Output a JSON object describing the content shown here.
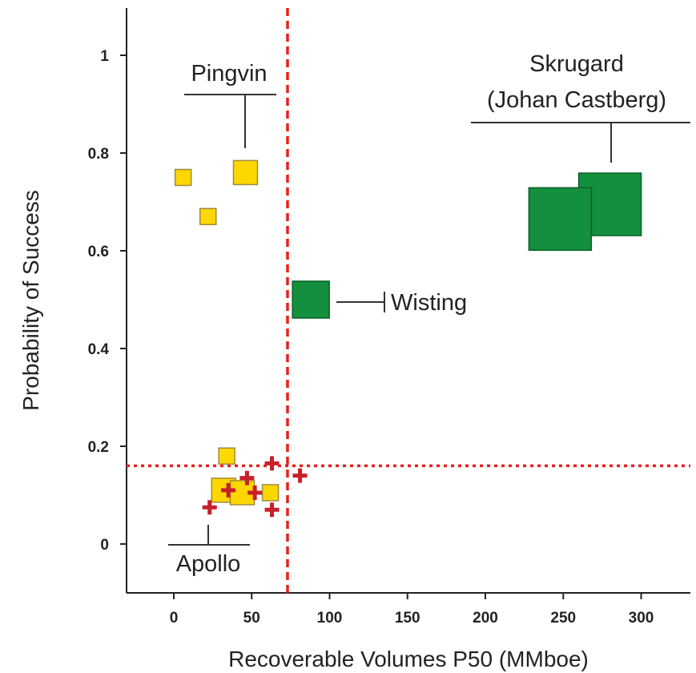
{
  "chart_data": {
    "type": "scatter",
    "title": "",
    "xlabel": "Recoverable Volumes P50 (MMboe)",
    "ylabel": "Probability of Success",
    "xlim": [
      -30,
      330
    ],
    "ylim": [
      -0.1,
      1.1
    ],
    "x_ticks": [
      0,
      50,
      100,
      150,
      200,
      250,
      300
    ],
    "x_tick_labels": [
      "0",
      "50",
      "100",
      "150",
      "200",
      "250",
      "300"
    ],
    "y_ticks": [
      0,
      0.2,
      0.4,
      0.6,
      0.8,
      1
    ],
    "y_tick_labels": [
      "0",
      "0.2",
      "0.4",
      "0.6",
      "0.8",
      "1"
    ],
    "grid": false,
    "legend": "none",
    "colors": {
      "yellow_fill": "#FFD700",
      "yellow_stroke": "#A08A3C",
      "green_fill": "#138F3E",
      "green_stroke": "#0B5E28",
      "cross": "#C8202A",
      "reference_line": "#E8211E",
      "annotation_line": "#333333"
    },
    "series": [
      {
        "marker": "yellow-square",
        "points": [
          {
            "x": 6,
            "y": 0.75,
            "size": "small"
          },
          {
            "x": 22,
            "y": 0.67,
            "size": "small"
          },
          {
            "x": 46,
            "y": 0.76,
            "size": "medium"
          },
          {
            "x": 34,
            "y": 0.18,
            "size": "small"
          },
          {
            "x": 32,
            "y": 0.11,
            "size": "medium"
          },
          {
            "x": 44,
            "y": 0.105,
            "size": "medium"
          },
          {
            "x": 62,
            "y": 0.105,
            "size": "small"
          }
        ]
      },
      {
        "marker": "green-square",
        "points": [
          {
            "x": 88,
            "y": 0.5,
            "size": "medium-large"
          },
          {
            "x": 280,
            "y": 0.695,
            "size": "large"
          },
          {
            "x": 248,
            "y": 0.665,
            "size": "large"
          }
        ]
      },
      {
        "marker": "red-cross",
        "points": [
          {
            "x": 23,
            "y": 0.075
          },
          {
            "x": 35,
            "y": 0.11
          },
          {
            "x": 47,
            "y": 0.135
          },
          {
            "x": 52,
            "y": 0.105
          },
          {
            "x": 63,
            "y": 0.165
          },
          {
            "x": 63,
            "y": 0.07
          },
          {
            "x": 81,
            "y": 0.14
          }
        ]
      }
    ],
    "reference_lines": [
      {
        "orientation": "vertical",
        "x": 73,
        "style": "dashed"
      },
      {
        "orientation": "horizontal",
        "y": 0.16,
        "style": "dotted"
      }
    ],
    "annotations": [
      {
        "text": "Pingvin"
      },
      {
        "text": "Skrugard"
      },
      {
        "text": "(Johan Castberg)"
      },
      {
        "text": "Wisting"
      },
      {
        "text": "Apollo"
      }
    ]
  }
}
